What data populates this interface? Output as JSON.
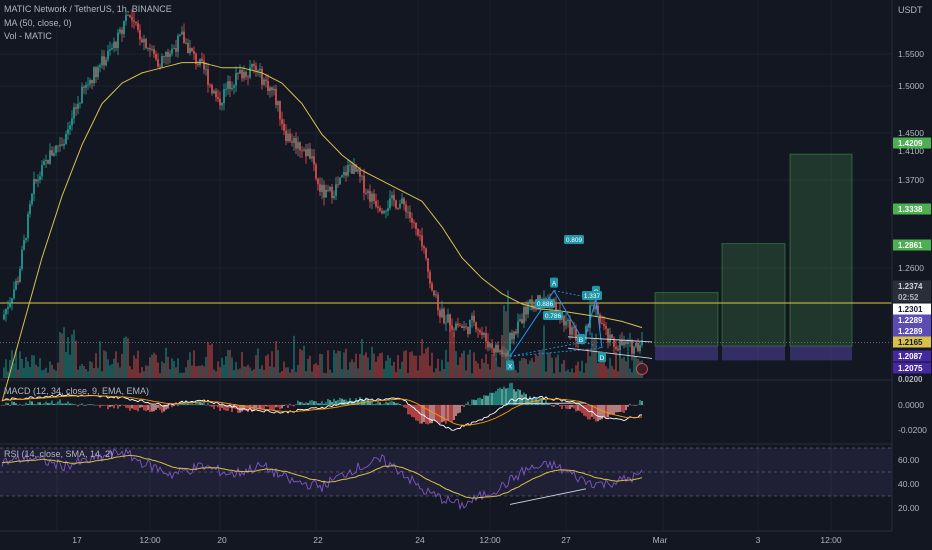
{
  "header": {
    "title": "MATIC Network / TetherUS, 1h, BINANCE",
    "ma_indicator": "MA (50, close, 0)",
    "vol_indicator": "Vol - MATIC",
    "macd_indicator": "MACD (12, 34, close, 9, EMA, EMA)",
    "rsi_indicator": "RSI (14, close, SMA, 14, 2)",
    "currency": "USDT"
  },
  "colors": {
    "background": "#131722",
    "up": "#26a69a",
    "down": "#ef5350",
    "ma": "#d8c14a",
    "rsi": "#7e57c2",
    "target_green": "#4caf50",
    "stop_purple": "#5b4bb5",
    "pattern": "#2196f3"
  },
  "price_axis": {
    "ticks": [
      "1.5500",
      "1.5000",
      "1.4500",
      "1.4100",
      "1.3700",
      "1.2600"
    ],
    "labels": [
      {
        "text": "1.4209",
        "bg": "#4caf50",
        "fg": "#ffffff",
        "value": 1.4209
      },
      {
        "text": "1.3338",
        "bg": "#4caf50",
        "fg": "#ffffff",
        "value": 1.3338
      },
      {
        "text": "1.2861",
        "bg": "#4caf50",
        "fg": "#ffffff",
        "value": 1.2861
      },
      {
        "text": "1.2374",
        "bg": "#2a2e39",
        "fg": "#d1d4dc",
        "value": 1.2374
      },
      {
        "text": "02:52",
        "bg": "#2a2e39",
        "fg": "#b2b5be",
        "value": 1.2335
      },
      {
        "text": "1.2301",
        "bg": "#ffffff",
        "fg": "#131722",
        "value": 1.2301
      },
      {
        "text": "1.2289",
        "bg": "#5b4bb5",
        "fg": "#ffffff",
        "value": 1.2289
      },
      {
        "text": "1.2289",
        "bg": "#5b4bb5",
        "fg": "#ffffff",
        "value": 1.2289
      },
      {
        "text": "1.2165",
        "bg": "#d8c14a",
        "fg": "#131722",
        "value": 1.2165
      },
      {
        "text": "1.2087",
        "bg": "#4527a0",
        "fg": "#ffffff",
        "value": 1.2087
      },
      {
        "text": "1.2075",
        "bg": "#4527a0",
        "fg": "#ffffff",
        "value": 1.2075
      },
      {
        "text": "0.0200",
        "bg": "#131722",
        "fg": "#b2b5be",
        "value": 1.201
      }
    ]
  },
  "macd_axis": {
    "ticks": [
      "0.0000",
      "-0.0200"
    ]
  },
  "rsi_axis": {
    "ticks": [
      "60.00",
      "40.00",
      "20.00"
    ]
  },
  "time_axis": {
    "ticks": [
      "17",
      "12:00",
      "20",
      "22",
      "24",
      "12:00",
      "27",
      "Mar",
      "3",
      "12:00"
    ]
  },
  "pattern_labels": {
    "points": [
      "X",
      "A",
      "B",
      "C",
      "D"
    ],
    "ratios": [
      "0.809",
      "0.786",
      "1.337",
      "0.886"
    ]
  },
  "chart_data": {
    "type": "candlestick",
    "price_range": [
      1.2,
      1.57
    ],
    "close_path": [
      [
        0,
        1.26
      ],
      [
        8,
        1.3
      ],
      [
        16,
        1.39
      ],
      [
        24,
        1.42
      ],
      [
        32,
        1.44
      ],
      [
        40,
        1.48
      ],
      [
        46,
        1.5
      ],
      [
        54,
        1.52
      ],
      [
        60,
        1.54
      ],
      [
        62,
        1.56
      ],
      [
        66,
        1.545
      ],
      [
        72,
        1.53
      ],
      [
        78,
        1.51
      ],
      [
        84,
        1.52
      ],
      [
        90,
        1.535
      ],
      [
        96,
        1.515
      ],
      [
        102,
        1.5
      ],
      [
        108,
        1.47
      ],
      [
        114,
        1.49
      ],
      [
        120,
        1.5
      ],
      [
        126,
        1.505
      ],
      [
        130,
        1.495
      ],
      [
        136,
        1.48
      ],
      [
        142,
        1.44
      ],
      [
        148,
        1.43
      ],
      [
        154,
        1.42
      ],
      [
        158,
        1.39
      ],
      [
        162,
        1.38
      ],
      [
        168,
        1.39
      ],
      [
        174,
        1.41
      ],
      [
        178,
        1.4
      ],
      [
        184,
        1.38
      ],
      [
        190,
        1.37
      ],
      [
        196,
        1.375
      ],
      [
        202,
        1.37
      ],
      [
        206,
        1.35
      ],
      [
        210,
        1.33
      ],
      [
        214,
        1.3
      ],
      [
        218,
        1.27
      ],
      [
        222,
        1.26
      ],
      [
        228,
        1.255
      ],
      [
        232,
        1.25
      ],
      [
        236,
        1.26
      ],
      [
        240,
        1.245
      ],
      [
        244,
        1.235
      ],
      [
        248,
        1.23
      ],
      [
        252,
        1.225
      ],
      [
        254,
        1.24
      ],
      [
        258,
        1.255
      ],
      [
        262,
        1.27
      ],
      [
        266,
        1.275
      ],
      [
        270,
        1.28
      ],
      [
        274,
        1.278
      ],
      [
        278,
        1.265
      ],
      [
        282,
        1.255
      ],
      [
        285,
        1.25
      ],
      [
        288,
        1.24
      ],
      [
        291,
        1.235
      ],
      [
        294,
        1.27
      ],
      [
        297,
        1.278
      ],
      [
        300,
        1.255
      ],
      [
        303,
        1.24
      ],
      [
        306,
        1.235
      ],
      [
        309,
        1.236
      ],
      [
        312,
        1.234
      ],
      [
        315,
        1.233
      ],
      [
        320,
        1.2374
      ]
    ],
    "ma_path": [
      [
        0,
        1.18
      ],
      [
        10,
        1.25
      ],
      [
        20,
        1.32
      ],
      [
        30,
        1.38
      ],
      [
        40,
        1.43
      ],
      [
        50,
        1.47
      ],
      [
        60,
        1.49
      ],
      [
        70,
        1.5
      ],
      [
        80,
        1.505
      ],
      [
        90,
        1.51
      ],
      [
        100,
        1.51
      ],
      [
        110,
        1.505
      ],
      [
        120,
        1.505
      ],
      [
        130,
        1.5
      ],
      [
        140,
        1.49
      ],
      [
        150,
        1.47
      ],
      [
        160,
        1.44
      ],
      [
        170,
        1.42
      ],
      [
        180,
        1.405
      ],
      [
        190,
        1.395
      ],
      [
        200,
        1.385
      ],
      [
        210,
        1.375
      ],
      [
        220,
        1.35
      ],
      [
        230,
        1.32
      ],
      [
        240,
        1.3
      ],
      [
        250,
        1.285
      ],
      [
        260,
        1.275
      ],
      [
        270,
        1.27
      ],
      [
        280,
        1.268
      ],
      [
        290,
        1.265
      ],
      [
        300,
        1.262
      ],
      [
        310,
        1.258
      ],
      [
        320,
        1.252
      ]
    ],
    "volume_spikes": [
      [
        30,
        0.62
      ],
      [
        36,
        0.55
      ],
      [
        62,
        0.5
      ],
      [
        104,
        0.45
      ],
      [
        150,
        0.38
      ],
      [
        212,
        0.35
      ],
      [
        225,
        0.55
      ],
      [
        252,
        0.9
      ],
      [
        270,
        0.35
      ],
      [
        296,
        0.5
      ],
      [
        320,
        0.2
      ]
    ],
    "macd_path": [
      [
        0,
        0.004
      ],
      [
        30,
        0.008
      ],
      [
        60,
        0.006
      ],
      [
        80,
        0.0
      ],
      [
        100,
        0.004
      ],
      [
        120,
        -0.003
      ],
      [
        140,
        -0.006
      ],
      [
        160,
        -0.002
      ],
      [
        180,
        0.004
      ],
      [
        200,
        0.005
      ],
      [
        210,
        -0.008
      ],
      [
        225,
        -0.02
      ],
      [
        240,
        -0.012
      ],
      [
        255,
        0.004
      ],
      [
        270,
        0.006
      ],
      [
        285,
        0.003
      ],
      [
        300,
        -0.01
      ],
      [
        310,
        -0.012
      ],
      [
        320,
        -0.008
      ]
    ],
    "rsi_path": [
      [
        0,
        58
      ],
      [
        15,
        62
      ],
      [
        30,
        55
      ],
      [
        45,
        60
      ],
      [
        60,
        67
      ],
      [
        70,
        58
      ],
      [
        85,
        48
      ],
      [
        100,
        55
      ],
      [
        115,
        48
      ],
      [
        130,
        55
      ],
      [
        145,
        42
      ],
      [
        160,
        38
      ],
      [
        175,
        52
      ],
      [
        190,
        60
      ],
      [
        200,
        50
      ],
      [
        210,
        35
      ],
      [
        220,
        28
      ],
      [
        230,
        22
      ],
      [
        240,
        30
      ],
      [
        250,
        38
      ],
      [
        262,
        52
      ],
      [
        275,
        56
      ],
      [
        285,
        48
      ],
      [
        292,
        42
      ],
      [
        300,
        40
      ],
      [
        310,
        43
      ],
      [
        320,
        48
      ]
    ],
    "rsi_levels": [
      70,
      50,
      30
    ],
    "harmonic_pattern": {
      "type": "bat",
      "points": {
        "X": [
          254,
          1.224
        ],
        "A": [
          276,
          1.288
        ],
        "B": [
          291,
          1.238
        ],
        "C": [
          297,
          1.28
        ],
        "D": [
          300,
          1.232
        ]
      }
    },
    "long_positions": [
      {
        "entry": 1.234,
        "target": 1.2861,
        "stop": 1.2289
      },
      {
        "entry": 1.234,
        "target": 1.3338,
        "stop": 1.2289
      },
      {
        "entry": 1.234,
        "target": 1.4209,
        "stop": 1.2289
      }
    ]
  }
}
